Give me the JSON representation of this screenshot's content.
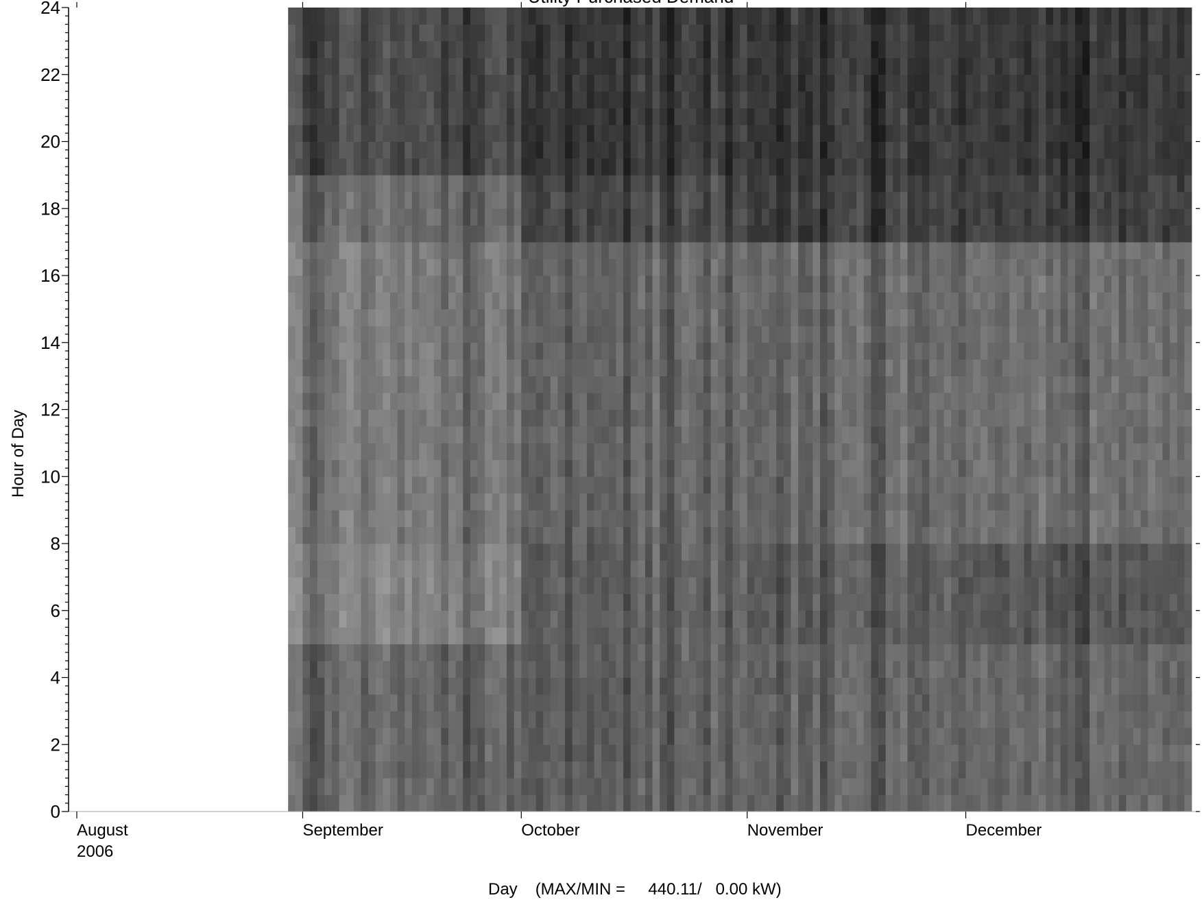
{
  "chart_data": {
    "type": "heatmap",
    "title": "Utility Purchased Demand",
    "xlabel": "Day",
    "xlabel_note": "(MAX/MIN =     440.11/   0.00 kW)",
    "ylabel": "Hour of Day",
    "x_range": [
      "2006-08-01",
      "2006-12-31"
    ],
    "ylim": [
      0,
      24
    ],
    "y_ticks": [
      0,
      2,
      4,
      6,
      8,
      10,
      12,
      14,
      16,
      18,
      20,
      22,
      24
    ],
    "x_tick_labels": [
      {
        "label": "August",
        "sublabel": "2006",
        "date": "2006-08-01"
      },
      {
        "label": "September",
        "sublabel": "",
        "date": "2006-09-01"
      },
      {
        "label": "October",
        "sublabel": "",
        "date": "2006-10-01"
      },
      {
        "label": "November",
        "sublabel": "",
        "date": "2006-11-01"
      },
      {
        "label": "December",
        "sublabel": "",
        "date": "2006-12-01"
      }
    ],
    "value_max_kw": 440.11,
    "value_min_kw": 0.0,
    "data_start": "2006-08-30",
    "colormap": "grayscale (low demand = light, high demand = dark)",
    "approx_hourly_profile_kw_by_period": [
      {
        "period": "September",
        "hours_0_5": 270,
        "hours_5_8": 215,
        "hours_8_17": 235,
        "hours_17_19": 265,
        "hours_19_24": 330
      },
      {
        "period": "October",
        "hours_0_5": 280,
        "hours_5_8": 280,
        "hours_8_17": 270,
        "hours_17_19": 330,
        "hours_19_24": 360
      },
      {
        "period": "November",
        "hours_0_5": 265,
        "hours_5_8": 280,
        "hours_8_17": 255,
        "hours_17_19": 340,
        "hours_19_24": 355
      },
      {
        "period": "December",
        "hours_0_5": 265,
        "hours_5_8": 300,
        "hours_8_17": 250,
        "hours_17_19": 345,
        "hours_19_24": 360
      }
    ],
    "grid": false,
    "legend": "none"
  }
}
